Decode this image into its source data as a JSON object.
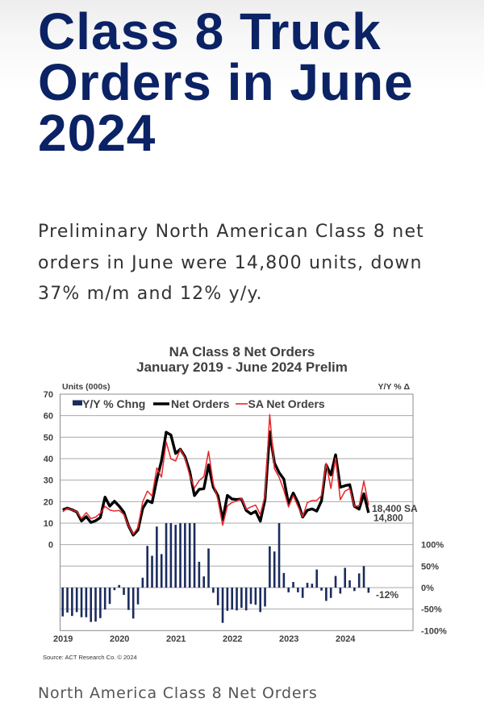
{
  "article": {
    "title": "Class 8 Truck Orders in June 2024",
    "lede": "Preliminary North American Class 8 net orders in June were 14,800 units, down 37% m/m and 12% y/y.",
    "figure_caption": "North America Class 8 Net Orders"
  },
  "chart_data": {
    "type": "line",
    "title": "NA Class 8 Net Orders",
    "subtitle": "January 2019 - June 2024 Prelim",
    "xlabel": "",
    "ylabel": "Units (000s)",
    "y2label": "Y/Y % Δ",
    "ylim": [
      -40,
      70
    ],
    "yticks": [
      0,
      10,
      20,
      30,
      40,
      50,
      60,
      70
    ],
    "y2lim": [
      -100,
      450
    ],
    "y2ticks": [
      100,
      50,
      0,
      -50,
      -100
    ],
    "y2tick_labels": [
      "100%",
      "50%",
      "0%",
      "-50%",
      "-100%"
    ],
    "grid": true,
    "grid_step": 10,
    "legend_position": "top-left",
    "xticks": [
      "2019",
      "2020",
      "2021",
      "2022",
      "2023",
      "2024"
    ],
    "x": [
      "2019-01",
      "2019-02",
      "2019-03",
      "2019-04",
      "2019-05",
      "2019-06",
      "2019-07",
      "2019-08",
      "2019-09",
      "2019-10",
      "2019-11",
      "2019-12",
      "2020-01",
      "2020-02",
      "2020-03",
      "2020-04",
      "2020-05",
      "2020-06",
      "2020-07",
      "2020-08",
      "2020-09",
      "2020-10",
      "2020-11",
      "2020-12",
      "2021-01",
      "2021-02",
      "2021-03",
      "2021-04",
      "2021-05",
      "2021-06",
      "2021-07",
      "2021-08",
      "2021-09",
      "2021-10",
      "2021-11",
      "2021-12",
      "2022-01",
      "2022-02",
      "2022-03",
      "2022-04",
      "2022-05",
      "2022-06",
      "2022-07",
      "2022-08",
      "2022-09",
      "2022-10",
      "2022-11",
      "2022-12",
      "2023-01",
      "2023-02",
      "2023-03",
      "2023-04",
      "2023-05",
      "2023-06",
      "2023-07",
      "2023-08",
      "2023-09",
      "2023-10",
      "2023-11",
      "2023-12",
      "2024-01",
      "2024-02",
      "2024-03",
      "2024-04",
      "2024-05",
      "2024-06"
    ],
    "series": [
      {
        "name": "Y/Y % Chng",
        "type": "bar",
        "axis": "right",
        "unit": "%",
        "color": "#1b2b5e",
        "clipped_at": 150,
        "values": [
          -67,
          -58,
          -66,
          -57,
          -69,
          -69,
          -80,
          -79,
          -71,
          -51,
          -38,
          -6,
          6,
          -17,
          -52,
          -72,
          -39,
          23,
          97,
          74,
          142,
          78,
          150,
          150,
          146,
          150,
          150,
          150,
          150,
          60,
          26,
          91,
          -12,
          -41,
          -82,
          -54,
          -51,
          -53,
          -47,
          -53,
          -38,
          -40,
          -57,
          -44,
          96,
          84,
          150,
          34,
          -11,
          13,
          -11,
          -24,
          11,
          9,
          42,
          -7,
          -31,
          -24,
          27,
          -14,
          46,
          17,
          -8,
          33,
          50,
          -12
        ]
      },
      {
        "name": "Net Orders",
        "type": "line",
        "axis": "left",
        "unit": "000s units",
        "color": "#000000",
        "values": [
          16.2,
          17.0,
          16.2,
          15.2,
          11.0,
          13.0,
          10.3,
          11.1,
          12.6,
          22.1,
          17.9,
          20.2,
          17.9,
          15.1,
          8.7,
          4.4,
          6.8,
          16.8,
          20.5,
          19.5,
          30.2,
          39.0,
          52.3,
          51.0,
          42.4,
          44.4,
          40.9,
          34.0,
          22.8,
          25.7,
          26.0,
          37.1,
          26.8,
          22.7,
          11.5,
          22.9,
          21.2,
          21.0,
          21.2,
          15.9,
          14.3,
          15.5,
          10.9,
          20.9,
          52.5,
          38.0,
          33.5,
          30.5,
          19.0,
          24.0,
          19.6,
          12.8,
          16.0,
          16.6,
          15.6,
          20.3,
          37.1,
          32.4,
          41.8,
          26.7,
          27.4,
          27.9,
          17.8,
          16.5,
          23.7,
          14.8
        ]
      },
      {
        "name": "SA Net Orders",
        "type": "line",
        "axis": "left",
        "unit": "000s units",
        "color": "#e8262b",
        "values": [
          15.3,
          16.9,
          16.1,
          15.3,
          12.1,
          14.9,
          12.1,
          12.8,
          14.6,
          17.8,
          16.1,
          15.6,
          15.9,
          14.0,
          8.7,
          4.9,
          7.9,
          19.9,
          24.9,
          22.6,
          35.7,
          31.4,
          47.8,
          39.9,
          38.9,
          44.4,
          40.3,
          32.1,
          26.3,
          29.8,
          31.6,
          43.4,
          28.4,
          20.9,
          9.0,
          18.0,
          19.6,
          20.3,
          21.5,
          16.5,
          17.5,
          18.4,
          14.0,
          22.8,
          60.5,
          35.3,
          31.3,
          25.3,
          17.5,
          22.8,
          17.8,
          13.0,
          19.6,
          20.5,
          20.6,
          22.8,
          37.8,
          26.1,
          40.3,
          20.9,
          24.9,
          26.1,
          17.8,
          18.1,
          29.6,
          18.4
        ]
      }
    ],
    "annotations": [
      {
        "text": "18,400 SA",
        "series": "SA Net Orders",
        "x": "2024-06",
        "color": "#e8262b"
      },
      {
        "text": "14,800",
        "series": "Net Orders",
        "x": "2024-06",
        "color": "#000000"
      },
      {
        "text": "-12%",
        "series": "Y/Y % Chng",
        "x": "2024-06",
        "color": "#000000"
      }
    ],
    "source": "Source: ACT Research Co. © 2024"
  }
}
